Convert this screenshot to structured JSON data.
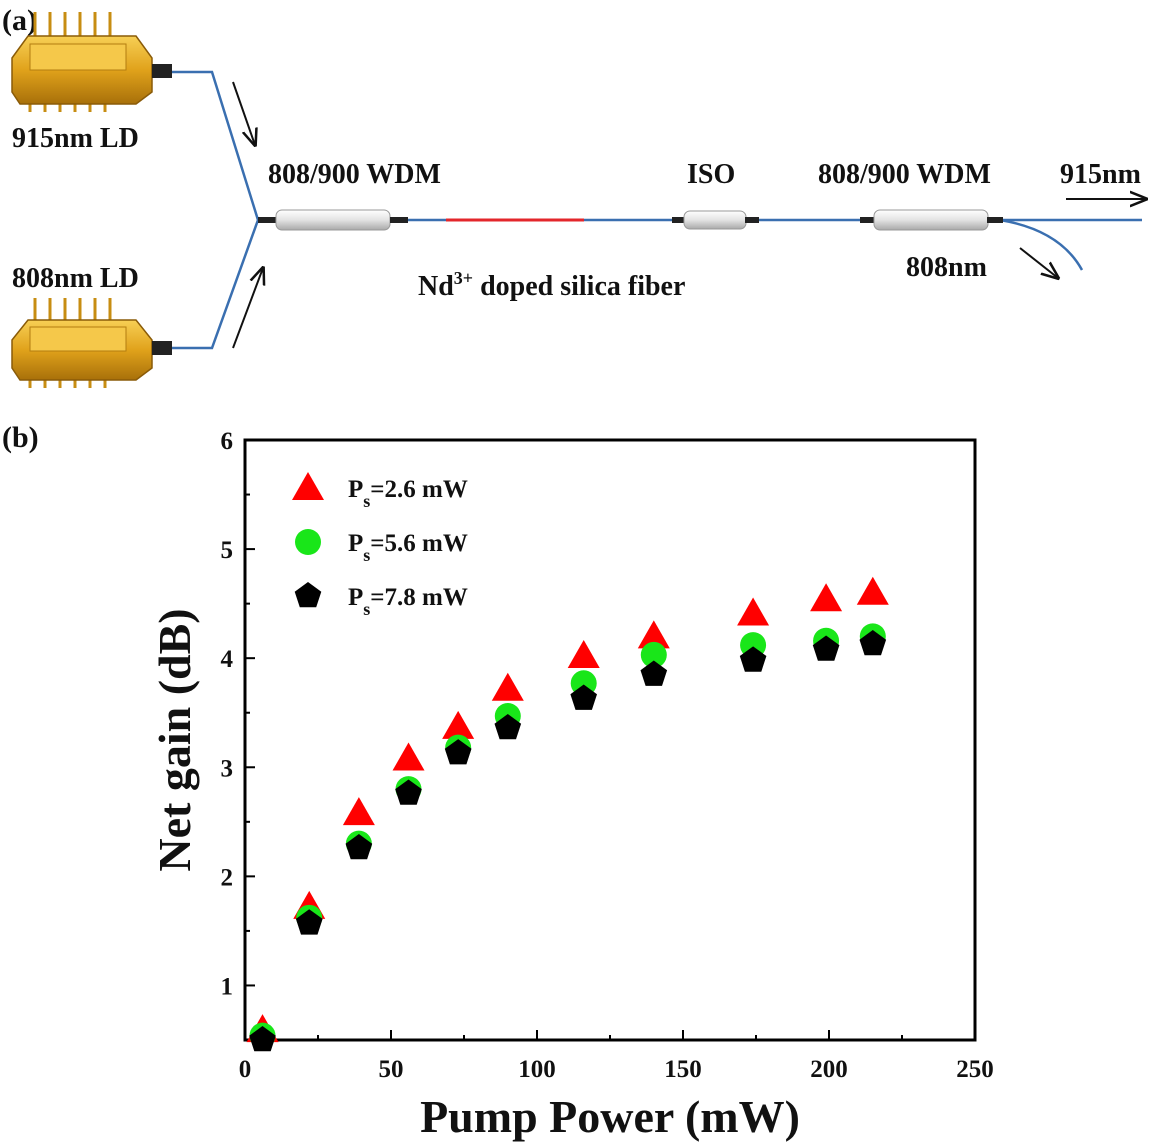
{
  "panel_a": {
    "label": "(a)",
    "laser_915_label": "915nm LD",
    "laser_808_label": "808nm LD",
    "wdm1_label": "808/900 WDM",
    "iso_label": "ISO",
    "wdm2_label": "808/900 WDM",
    "output_915_label": "915nm",
    "output_808_label": "808nm",
    "fiber_label_main": "Nd",
    "fiber_label_sup": "3+",
    "fiber_label_rest": " doped silica fiber",
    "colors": {
      "fiber": "#3a6fb0",
      "doped_fiber": "#e3262b",
      "laser_body": "#e0a21b"
    }
  },
  "panel_b": {
    "label": "(b)"
  },
  "chart_data": {
    "type": "scatter",
    "xlabel": "Pump Power (mW)",
    "ylabel": "Net gain (dB)",
    "xlim": [
      0,
      250
    ],
    "ylim": [
      0.5,
      6
    ],
    "xticks": [
      0,
      50,
      100,
      150,
      200,
      250
    ],
    "yticks": [
      1,
      2,
      3,
      4,
      5,
      6
    ],
    "grid": false,
    "legend_position": "top-left",
    "x": [
      6,
      22,
      39,
      56,
      73,
      90,
      116,
      140,
      174,
      199,
      215
    ],
    "series": [
      {
        "name_main": "P",
        "name_sub": "s",
        "name_rest": "=2.6 mW",
        "marker": "triangle",
        "color": "#ff0000",
        "values": [
          0.59,
          1.72,
          2.58,
          3.08,
          3.37,
          3.72,
          4.02,
          4.2,
          4.41,
          4.54,
          4.6
        ]
      },
      {
        "name_main": "P",
        "name_sub": "s",
        "name_rest": "=5.6 mW",
        "marker": "circle",
        "color": "#19e619",
        "values": [
          0.54,
          1.62,
          2.3,
          2.8,
          3.18,
          3.47,
          3.77,
          4.03,
          4.12,
          4.16,
          4.2
        ]
      },
      {
        "name_main": "P",
        "name_sub": "s",
        "name_rest": "=7.8 mW",
        "marker": "pentagon",
        "color": "#000000",
        "values": [
          0.5,
          1.57,
          2.26,
          2.76,
          3.13,
          3.36,
          3.63,
          3.85,
          3.98,
          4.08,
          4.13
        ]
      }
    ]
  }
}
